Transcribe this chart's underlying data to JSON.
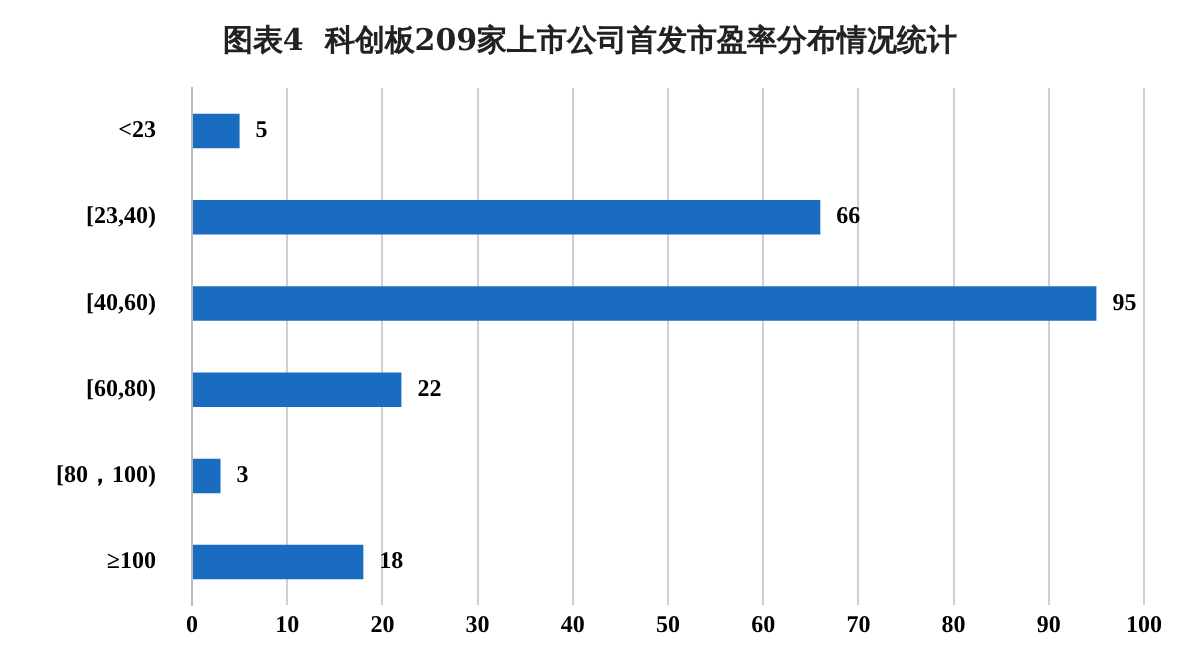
{
  "chart_data": {
    "type": "bar",
    "orientation": "horizontal",
    "title": "图表4  科创板209家上市公司首发市盈率分布情况统计",
    "categories": [
      "<23",
      "[23,40)",
      "[40,60)",
      "[60,80)",
      "[80，100)",
      "≥100"
    ],
    "values": [
      5,
      66,
      95,
      22,
      3,
      18
    ],
    "color": "#1a6cc0",
    "xlim": [
      0,
      100
    ],
    "xticks": [
      0,
      10,
      20,
      30,
      40,
      50,
      60,
      70,
      80,
      90,
      100
    ],
    "grid": "x",
    "data_labels": true,
    "legend": false
  }
}
